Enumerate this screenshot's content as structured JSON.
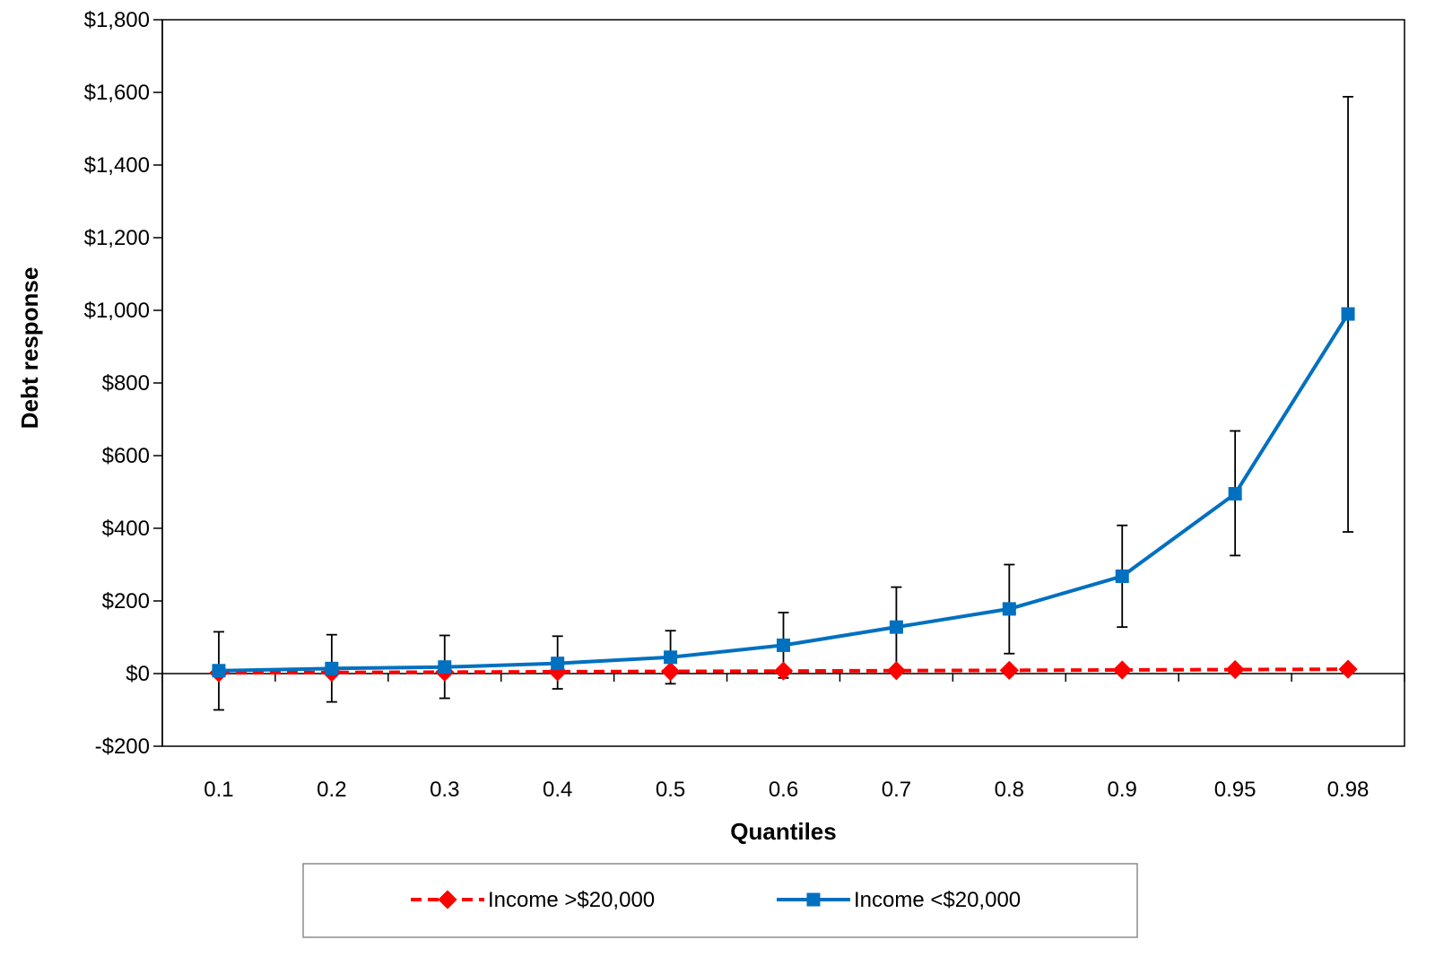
{
  "chart_data": {
    "type": "line",
    "xlabel": "Quantiles",
    "ylabel": "Debt response",
    "categories": [
      "0.1",
      "0.2",
      "0.3",
      "0.4",
      "0.5",
      "0.6",
      "0.7",
      "0.8",
      "0.9",
      "0.95",
      "0.98"
    ],
    "ylim": [
      -200,
      1800
    ],
    "yticks": [
      -200,
      0,
      200,
      400,
      600,
      800,
      1000,
      1200,
      1400,
      1600,
      1800
    ],
    "ytick_labels": [
      "-$200",
      "$0",
      "$200",
      "$400",
      "$600",
      "$800",
      "$1,000",
      "$1,200",
      "$1,400",
      "$1,600",
      "$1,800"
    ],
    "grid": false,
    "legend_position": "bottom",
    "series": [
      {
        "name": "Income >$20,000",
        "color": "#FF0000",
        "line_style": "dashed",
        "marker": "diamond",
        "values": [
          2,
          3,
          4,
          5,
          6,
          7,
          8,
          9,
          10,
          11,
          12
        ]
      },
      {
        "name": "Income <$20,000",
        "color": "#0070C0",
        "line_style": "solid",
        "marker": "square",
        "values": [
          8,
          14,
          18,
          28,
          45,
          78,
          128,
          178,
          268,
          495,
          990
        ],
        "error_low": [
          -100,
          -78,
          -68,
          -42,
          -28,
          -12,
          0,
          55,
          128,
          325,
          390
        ],
        "error_high": [
          115,
          107,
          105,
          103,
          118,
          168,
          238,
          300,
          408,
          668,
          1588
        ],
        "error_color": "#000000"
      }
    ]
  }
}
